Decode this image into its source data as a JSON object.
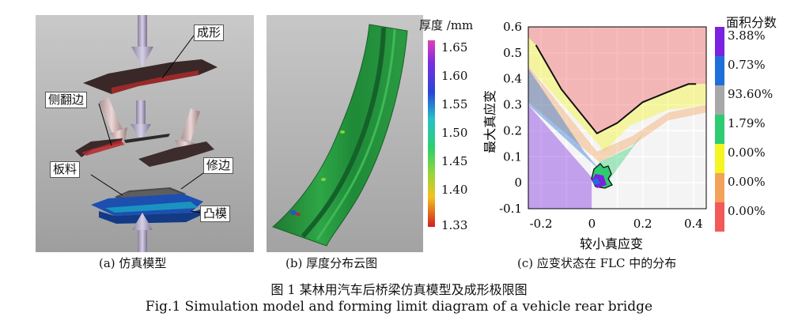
{
  "panel_a": {
    "caption": "(a) 仿真模型",
    "labels": {
      "forming": "成形",
      "side_flange": "侧翻边",
      "blank": "板料",
      "trim": "修边",
      "punch": "凸模"
    }
  },
  "panel_b": {
    "caption": "(b) 厚度分布云图",
    "legend_title": "厚度 /mm",
    "ticks": [
      "1.65",
      "1.60",
      "1.55",
      "1.50",
      "1.45",
      "1.40",
      "1.33"
    ]
  },
  "panel_c": {
    "caption": "(c) 应变状态在 FLC 中的分布",
    "legend_title": "面积分数",
    "legend": [
      {
        "label": "3.88%",
        "color": "#7a22e0"
      },
      {
        "label": "0.73%",
        "color": "#1e6fd9"
      },
      {
        "label": "93.60%",
        "color": "#a8a8a8"
      },
      {
        "label": "1.79%",
        "color": "#2ecc71"
      },
      {
        "label": "0.00%",
        "color": "#f5f523"
      },
      {
        "label": "0.00%",
        "color": "#f4a25a"
      },
      {
        "label": "0.00%",
        "color": "#f25a5a"
      }
    ]
  },
  "chart_data": {
    "type": "area",
    "xlabel": "较小真应变",
    "ylabel": "最大真应变",
    "xlim": [
      -0.25,
      0.45
    ],
    "ylim": [
      -0.1,
      0.6
    ],
    "xticks": [
      "-0.2",
      "0",
      "0.2",
      "0.4"
    ],
    "yticks": [
      "0.6",
      "0.5",
      "0.4",
      "0.3",
      "0.2",
      "0.1",
      "0",
      "-0.1"
    ],
    "flc": {
      "x": [
        -0.22,
        -0.12,
        0.02,
        0.1,
        0.2,
        0.3,
        0.38,
        0.41
      ],
      "y": [
        0.53,
        0.36,
        0.19,
        0.23,
        0.31,
        0.35,
        0.38,
        0.38
      ]
    }
  },
  "figure": {
    "title_cn": "图 1   某林用汽车后桥梁仿真模型及成形极限图",
    "title_en": "Fig.1   Simulation model and forming limit diagram of a vehicle rear bridge"
  }
}
